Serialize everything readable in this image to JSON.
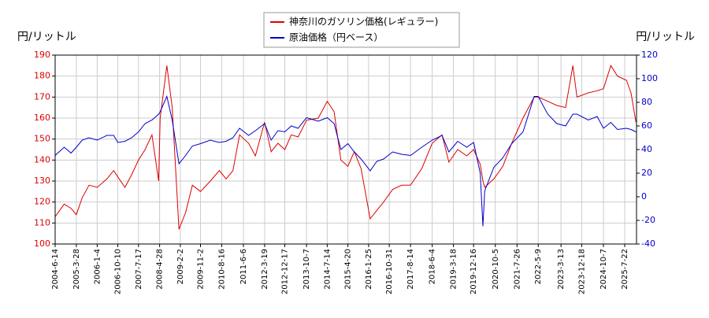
{
  "chart_data": {
    "type": "line",
    "y_label": "円/リットル",
    "y2_label": "円/リットル",
    "legend": "upper center",
    "grid": true,
    "xlim": [
      "2004-06-14",
      "2025-12-29"
    ],
    "xticks": [
      "2004-6-14",
      "2005-3-28",
      "2006-1-4",
      "2006-10-10",
      "2007-7-17",
      "2008-4-28",
      "2009-2-2",
      "2009-11-2",
      "2010-8-16",
      "2011-6-6",
      "2012-3-19",
      "2012-12-17",
      "2013-10-7",
      "2014-7-14",
      "2015-4-20",
      "2016-1-25",
      "2016-10-31",
      "2017-8-14",
      "2018-6-4",
      "2019-3-18",
      "2019-12-16",
      "2020-10-5",
      "2021-7-26",
      "2022-5-9",
      "2023-3-13",
      "2023-12-18",
      "2024-10-7",
      "2025-7-22"
    ],
    "ylim": [
      100,
      190
    ],
    "yticks": [
      100,
      110,
      120,
      130,
      140,
      150,
      160,
      170,
      180,
      190
    ],
    "y2lim": [
      -40,
      120
    ],
    "y2ticks": [
      -40,
      -20,
      0,
      20,
      40,
      60,
      80,
      100,
      120
    ],
    "x": [
      "2004-06-14",
      "2004-10-15",
      "2005-01-15",
      "2005-03-28",
      "2005-06-15",
      "2005-09-15",
      "2006-01-04",
      "2006-05-15",
      "2006-08-15",
      "2006-10-10",
      "2007-01-15",
      "2007-04-15",
      "2007-07-17",
      "2007-10-15",
      "2008-01-15",
      "2008-04-15",
      "2008-05-05",
      "2008-08-04",
      "2008-10-15",
      "2009-01-15",
      "2009-04-15",
      "2009-07-15",
      "2009-11-02",
      "2010-03-15",
      "2010-07-15",
      "2010-10-15",
      "2011-01-15",
      "2011-04-15",
      "2011-08-15",
      "2011-11-15",
      "2012-03-19",
      "2012-06-15",
      "2012-09-15",
      "2012-12-17",
      "2013-03-15",
      "2013-06-15",
      "2013-10-07",
      "2014-03-15",
      "2014-07-14",
      "2014-10-15",
      "2015-01-15",
      "2015-04-20",
      "2015-07-15",
      "2015-10-15",
      "2016-02-15",
      "2016-05-15",
      "2016-08-15",
      "2016-12-15",
      "2017-04-15",
      "2017-08-14",
      "2018-01-15",
      "2018-06-04",
      "2018-10-15",
      "2019-01-15",
      "2019-05-15",
      "2019-09-15",
      "2019-12-16",
      "2020-03-15",
      "2020-04-20",
      "2020-05-15",
      "2020-09-15",
      "2021-01-15",
      "2021-05-15",
      "2021-10-15",
      "2022-03-15",
      "2022-05-09",
      "2022-09-15",
      "2023-01-15",
      "2023-05-15",
      "2023-08-21",
      "2023-10-15",
      "2024-03-15",
      "2024-07-15",
      "2024-10-07",
      "2025-01-15",
      "2025-04-15",
      "2025-08-15",
      "2025-10-15",
      "2025-12-22"
    ],
    "series": [
      {
        "name": "神奈川のガソリン価格(レギュラー)",
        "color": "#dd0000",
        "values": [
          113,
          119,
          117,
          114,
          122,
          128,
          127,
          131,
          135,
          132,
          127,
          133,
          140,
          145,
          152,
          130,
          160,
          185,
          165,
          107,
          115,
          128,
          125,
          130,
          135,
          131,
          135,
          152,
          148,
          142,
          158,
          144,
          148,
          145,
          152,
          151,
          159,
          160,
          168,
          163,
          140,
          137,
          144,
          136,
          112,
          116,
          120,
          126,
          128,
          128,
          136,
          148,
          152,
          139,
          145,
          142,
          145,
          138,
          130,
          127,
          131,
          137,
          148,
          160,
          170,
          170,
          168,
          166,
          165,
          185,
          170,
          172,
          173,
          174,
          185,
          180,
          178,
          172,
          158
        ]
      },
      {
        "name": "原油価格（円ベース）",
        "color": "#0000cc",
        "axis": "y2",
        "values": [
          35,
          42,
          37,
          42,
          48,
          50,
          48,
          52,
          52,
          46,
          47,
          50,
          55,
          62,
          65,
          70,
          72,
          85,
          65,
          28,
          35,
          43,
          45,
          48,
          46,
          47,
          50,
          58,
          52,
          56,
          62,
          48,
          56,
          55,
          60,
          58,
          67,
          64,
          67,
          62,
          40,
          45,
          38,
          32,
          22,
          30,
          32,
          38,
          36,
          35,
          42,
          48,
          52,
          38,
          47,
          42,
          46,
          20,
          -25,
          5,
          25,
          33,
          45,
          55,
          85,
          85,
          70,
          62,
          60,
          70,
          70,
          65,
          68,
          58,
          63,
          57,
          58,
          57,
          55
        ]
      }
    ]
  }
}
